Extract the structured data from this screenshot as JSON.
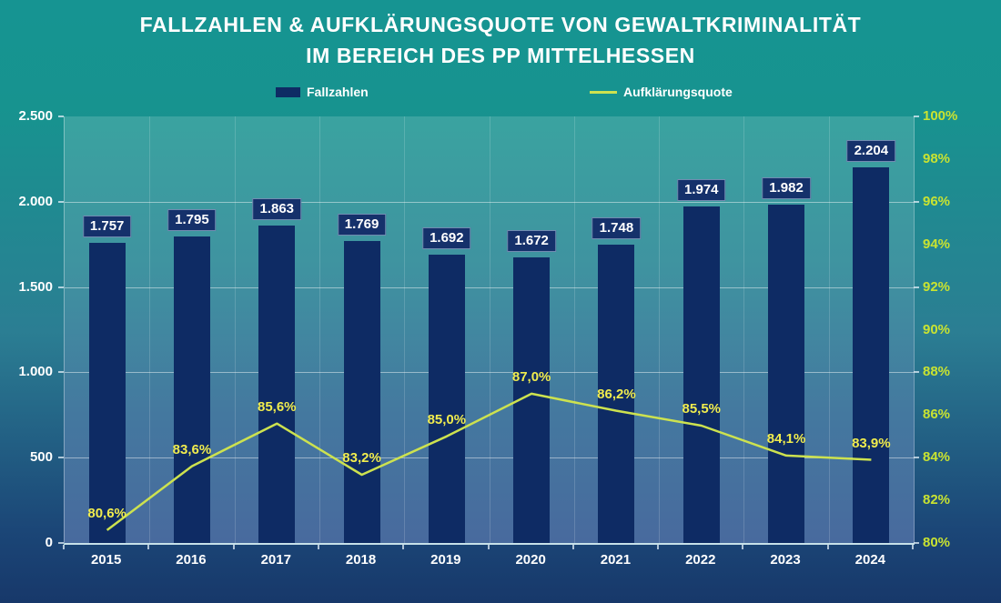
{
  "title_lines": [
    "FALLZAHLEN & AUFKLÄRUNGSQUOTE VON GEWALTKRIMINALITÄT",
    "IM BEREICH DES PP MITTELHESSEN"
  ],
  "colors": {
    "background_top": "#169492",
    "background_bottom": "#17386a",
    "plot_top": "#3aa3a0",
    "plot_bottom": "#486a9e",
    "bar": "#0e2b64",
    "bar_label_box": "#15316b",
    "line": "#cde24f",
    "line_label_text": "#f0ec4e",
    "right_axis_text": "#c9e331",
    "axis_text": "#ffffff"
  },
  "chart_data": {
    "type": "bar",
    "title": "FALLZAHLEN & AUFKLÄRUNGSQUOTE VON GEWALTKRIMINALITÄT IM BEREICH DES PP MITTELHESSEN",
    "title_lines": [
      "FALLZAHLEN & AUFKLÄRUNGSQUOTE VON GEWALTKRIMINALITÄT",
      "IM BEREICH DES PP MITTELHESSEN"
    ],
    "legend_position": "top",
    "grid": true,
    "categories": [
      "2015",
      "2016",
      "2017",
      "2018",
      "2019",
      "2020",
      "2021",
      "2022",
      "2023",
      "2024"
    ],
    "series": [
      {
        "name": "Fallzahlen",
        "chart": "bar",
        "axis": "left",
        "color": "#0e2b64",
        "values": [
          1757,
          1795,
          1863,
          1769,
          1692,
          1672,
          1748,
          1974,
          1982,
          2204
        ],
        "labels": [
          "1.757",
          "1.795",
          "1.863",
          "1.769",
          "1.692",
          "1.672",
          "1.748",
          "1.974",
          "1.982",
          "2.204"
        ]
      },
      {
        "name": "Aufklärungsquote",
        "chart": "line",
        "axis": "right",
        "color": "#cde24f",
        "values": [
          80.6,
          83.6,
          85.6,
          83.2,
          85.0,
          87.0,
          86.2,
          85.5,
          84.1,
          83.9
        ],
        "labels": [
          "80,6%",
          "83,6%",
          "85,6%",
          "83,2%",
          "85,0%",
          "87,0%",
          "86,2%",
          "85,5%",
          "84,1%",
          "83,9%"
        ]
      }
    ],
    "left_axis": {
      "min": 0,
      "max": 2500,
      "tick_labels": [
        "2.500",
        "2.000",
        "1.500",
        "1.000",
        "500",
        "0"
      ]
    },
    "right_axis": {
      "min": 80,
      "max": 100,
      "tick_labels": [
        "100%",
        "98%",
        "96%",
        "94%",
        "92%",
        "90%",
        "88%",
        "86%",
        "84%",
        "82%",
        "80%"
      ]
    }
  }
}
